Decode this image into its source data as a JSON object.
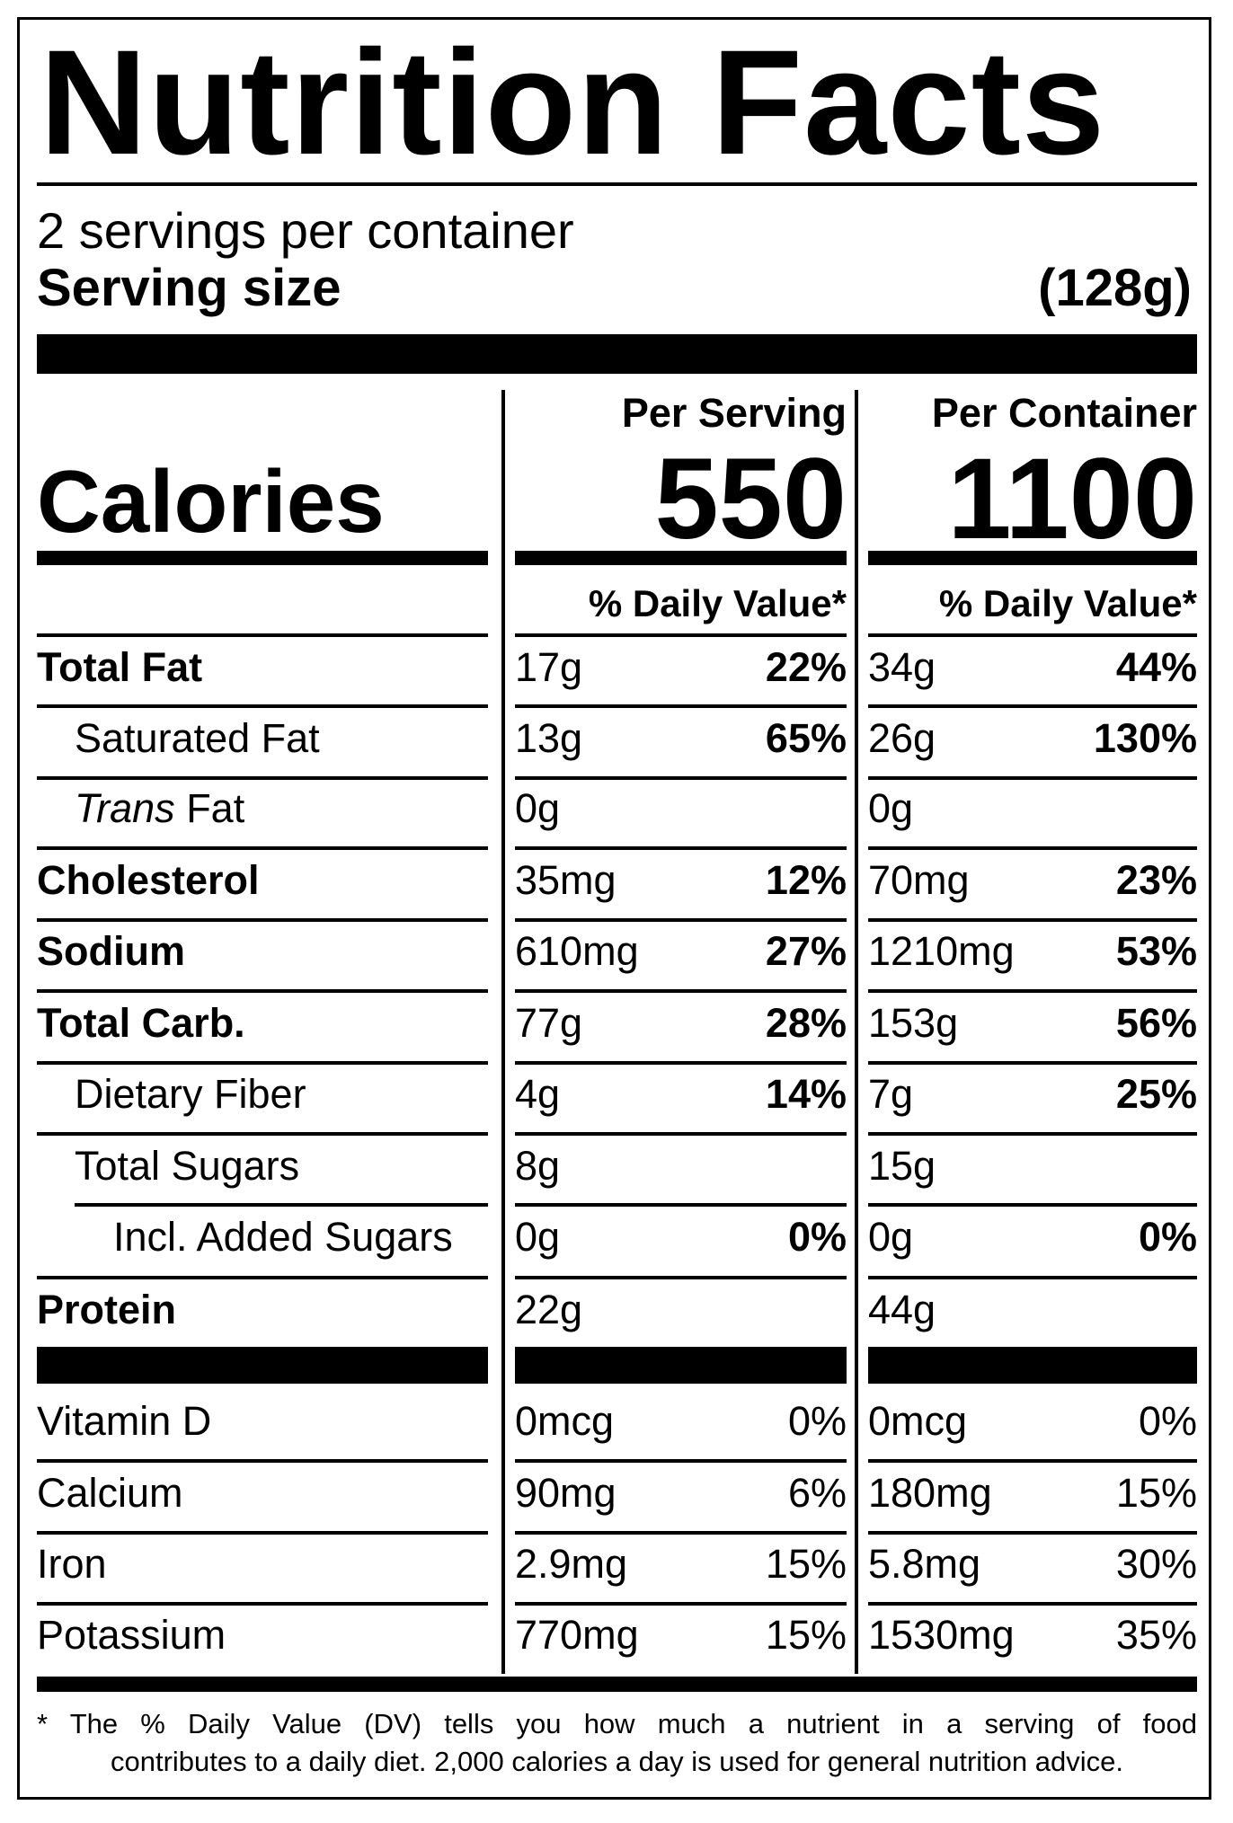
{
  "title": "Nutrition Facts",
  "servings_per_container": "2 servings per container",
  "serving_size": {
    "label": "Serving size",
    "value": "(128g)"
  },
  "columns": {
    "per_serving": {
      "heading": "Per Serving",
      "calories": "550",
      "dv_heading": "% Daily Value*"
    },
    "per_container": {
      "heading": "Per Container",
      "calories": "1100",
      "dv_heading": "% Daily Value*"
    }
  },
  "calories_label": "Calories",
  "nutrients": [
    {
      "name": "Total Fat",
      "bold": true,
      "indent": 0,
      "serving_amount": "17g",
      "serving_dv": "22%",
      "container_amount": "34g",
      "container_dv": "44%"
    },
    {
      "name": "Saturated Fat",
      "bold": false,
      "indent": 1,
      "serving_amount": "13g",
      "serving_dv": "65%",
      "container_amount": "26g",
      "container_dv": "130%"
    },
    {
      "name_italic": "Trans",
      "name_rest": " Fat",
      "bold": false,
      "indent": 1,
      "serving_amount": "0g",
      "serving_dv": "",
      "container_amount": "0g",
      "container_dv": ""
    },
    {
      "name": "Cholesterol",
      "bold": true,
      "indent": 0,
      "serving_amount": "35mg",
      "serving_dv": "12%",
      "container_amount": "70mg",
      "container_dv": "23%"
    },
    {
      "name": "Sodium",
      "bold": true,
      "indent": 0,
      "serving_amount": "610mg",
      "serving_dv": "27%",
      "container_amount": "1210mg",
      "container_dv": "53%"
    },
    {
      "name": "Total Carb.",
      "bold": true,
      "indent": 0,
      "serving_amount": "77g",
      "serving_dv": "28%",
      "container_amount": "153g",
      "container_dv": "56%"
    },
    {
      "name": "Dietary Fiber",
      "bold": false,
      "indent": 1,
      "serving_amount": "4g",
      "serving_dv": "14%",
      "container_amount": "7g",
      "container_dv": "25%"
    },
    {
      "name": "Total Sugars",
      "bold": false,
      "indent": 1,
      "serving_amount": "8g",
      "serving_dv": "",
      "container_amount": "15g",
      "container_dv": ""
    },
    {
      "name": "Incl. Added Sugars",
      "bold": false,
      "indent": 2,
      "serving_amount": "0g",
      "serving_dv": "0%",
      "container_amount": "0g",
      "container_dv": "0%"
    },
    {
      "name": "Protein",
      "bold": true,
      "indent": 0,
      "serving_amount": "22g",
      "serving_dv": "",
      "container_amount": "44g",
      "container_dv": ""
    }
  ],
  "vitamins": [
    {
      "name": "Vitamin D",
      "serving_amount": "0mcg",
      "serving_dv": "0%",
      "container_amount": "0mcg",
      "container_dv": "0%"
    },
    {
      "name": "Calcium",
      "serving_amount": "90mg",
      "serving_dv": "6%",
      "container_amount": "180mg",
      "container_dv": "15%"
    },
    {
      "name": "Iron",
      "serving_amount": "2.9mg",
      "serving_dv": "15%",
      "container_amount": "5.8mg",
      "container_dv": "30%"
    },
    {
      "name": "Potassium",
      "serving_amount": "770mg",
      "serving_dv": "15%",
      "container_amount": "1530mg",
      "container_dv": "35%"
    }
  ],
  "footnote": {
    "line1": "* The % Daily Value (DV) tells you how much a nutrient in a serving of food",
    "line2": "contributes to a daily diet. 2,000 calories a day is used for general nutrition advice."
  }
}
